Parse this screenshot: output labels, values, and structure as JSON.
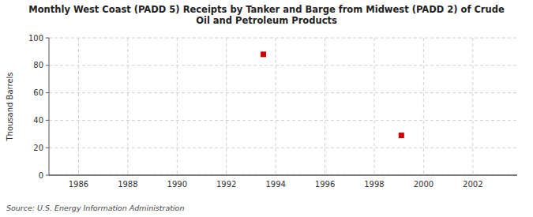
{
  "chart_data": {
    "type": "scatter",
    "title": "Monthly West Coast (PADD 5) Receipts by Tanker and Barge from Midwest (PADD 2) of Crude\nOil and Petroleum Products",
    "y_label": "Thousand Barrels",
    "annotations": [
      "Source: U.S. Energy Information Administration"
    ],
    "x": [
      1993.5,
      1999.1
    ],
    "values": [
      88,
      29
    ],
    "color": "#cc0000",
    "marker": "square",
    "xlim": [
      1984.8,
      2003.8
    ],
    "ylim": [
      0,
      100
    ],
    "xticks": [
      1986,
      1988,
      1990,
      1992,
      1994,
      1996,
      1998,
      2000,
      2002
    ],
    "yticks": [
      0,
      20,
      40,
      60,
      80,
      100
    ],
    "grid": true
  }
}
